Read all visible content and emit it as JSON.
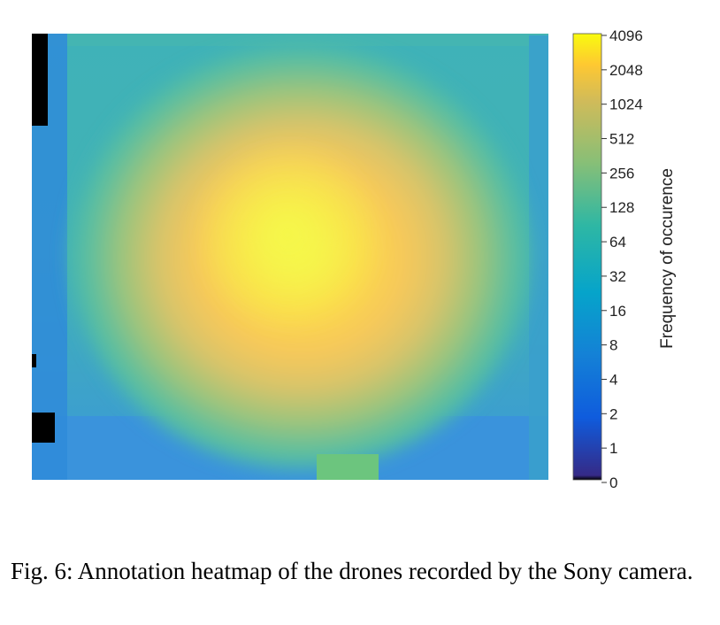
{
  "chart_data": {
    "type": "heatmap",
    "title": "",
    "xlabel": "",
    "ylabel": "",
    "colorbar": {
      "label": "Frequency of occurence",
      "scale": "log2",
      "ticks": [
        "0",
        "1",
        "2",
        "4",
        "8",
        "16",
        "32",
        "64",
        "128",
        "256",
        "512",
        "1024",
        "2048",
        "4096"
      ],
      "range": [
        0,
        4096
      ],
      "colormap": "parula"
    },
    "grid": false,
    "description_values": {
      "peak_level": 4096,
      "edge_level": 16
    }
  },
  "colors": {
    "zero": "#000000",
    "low": "#352a87",
    "mid": "#20b2aa",
    "high": "#f9fb0e"
  },
  "caption": "Fig. 6: Annotation heatmap of the drones recorded by the Sony camera."
}
